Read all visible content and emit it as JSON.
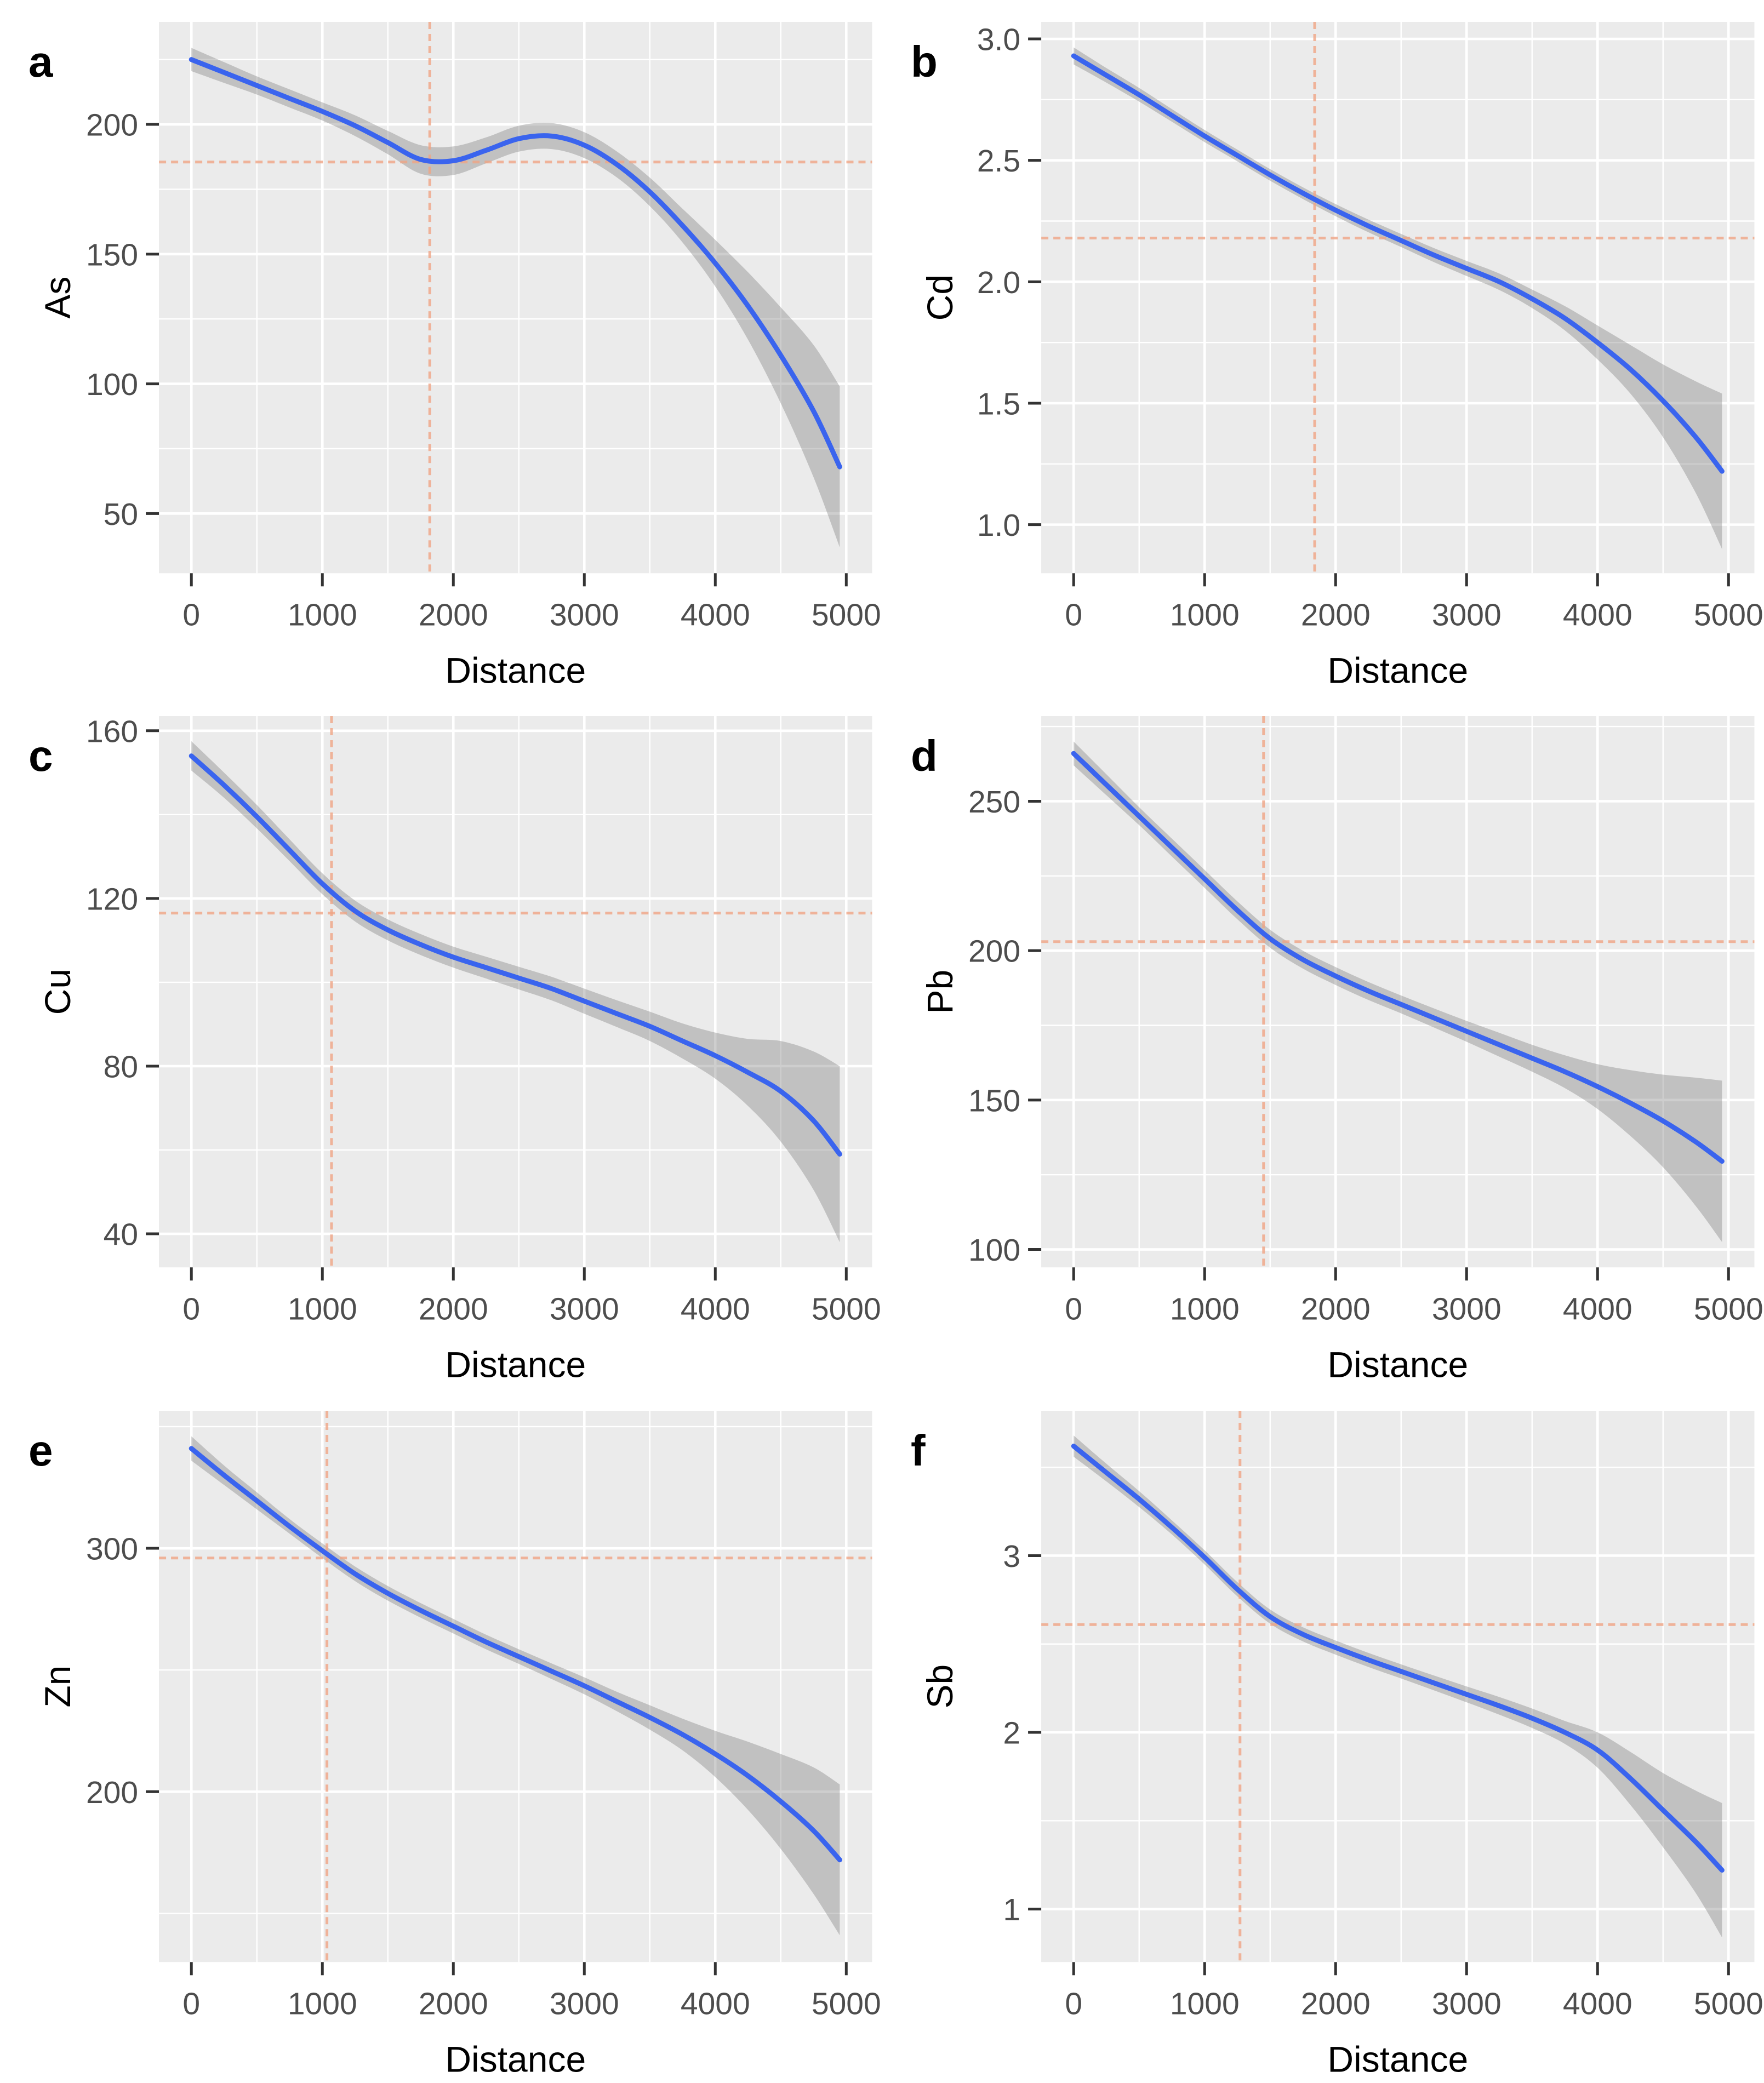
{
  "figure_title": "",
  "colors": {
    "panel_bg": "#EBEBEB",
    "grid": "#FFFFFF",
    "trend_line": "#3A64EE",
    "ribbon": "rgba(125,125,125,0.38)",
    "ref_line": "#F0A585",
    "tick_mark": "#333333",
    "tick_text": "#4D4D4D",
    "title_text": "#000000"
  },
  "chart_data": [
    {
      "type": "line",
      "letter": "a",
      "ylabel": "As",
      "xlabel": "Distance",
      "xlim": [
        -247.5,
        5197.5
      ],
      "xticks": [
        {
          "v": 0,
          "label": "0"
        },
        {
          "v": 1000,
          "label": "1000"
        },
        {
          "v": 2000,
          "label": "2000"
        },
        {
          "v": 3000,
          "label": "3000"
        },
        {
          "v": 4000,
          "label": "4000"
        },
        {
          "v": 5000,
          "label": "5000"
        }
      ],
      "xminor": [
        500,
        1500,
        2500,
        3500,
        4500
      ],
      "ylim": [
        27,
        239.5
      ],
      "yticks": [
        {
          "v": 50,
          "label": "50"
        },
        {
          "v": 100,
          "label": "100"
        },
        {
          "v": 150,
          "label": "150"
        },
        {
          "v": 200,
          "label": "200"
        }
      ],
      "yminor": [
        75,
        125,
        175,
        225
      ],
      "refline": {
        "x": 1820,
        "y": 185.5
      },
      "x": [
        0,
        250,
        500,
        750,
        1000,
        1250,
        1500,
        1750,
        2000,
        2250,
        2500,
        2750,
        3000,
        3250,
        3500,
        3750,
        4000,
        4250,
        4500,
        4750,
        4950
      ],
      "y": [
        225,
        220,
        215,
        210,
        205,
        199.5,
        193,
        186.5,
        186,
        190,
        194.5,
        195.5,
        192,
        184.5,
        174,
        161,
        146.5,
        130,
        111,
        89.5,
        68
      ],
      "lo": [
        220.5,
        216,
        211.5,
        206.5,
        201.5,
        195.5,
        188.5,
        181,
        180.5,
        185,
        189.5,
        190.5,
        187,
        179.5,
        168.5,
        154.5,
        137.5,
        117,
        92.5,
        64,
        37
      ],
      "hi": [
        229.5,
        224,
        218.5,
        213.5,
        208.5,
        203.5,
        197.5,
        192,
        191.5,
        195,
        199.5,
        200.5,
        197,
        189.5,
        179.5,
        167.5,
        155.5,
        143,
        129.5,
        115,
        99
      ]
    },
    {
      "type": "line",
      "letter": "b",
      "ylabel": "Cd",
      "xlabel": "Distance",
      "xlim": [
        -247.5,
        5197.5
      ],
      "xticks": [
        {
          "v": 0,
          "label": "0"
        },
        {
          "v": 1000,
          "label": "1000"
        },
        {
          "v": 2000,
          "label": "2000"
        },
        {
          "v": 3000,
          "label": "3000"
        },
        {
          "v": 4000,
          "label": "4000"
        },
        {
          "v": 5000,
          "label": "5000"
        }
      ],
      "xminor": [
        500,
        1500,
        2500,
        3500,
        4500
      ],
      "ylim": [
        0.8,
        3.07
      ],
      "yticks": [
        {
          "v": 1.0,
          "label": "1.0"
        },
        {
          "v": 1.5,
          "label": "1.5"
        },
        {
          "v": 2.0,
          "label": "2.0"
        },
        {
          "v": 2.5,
          "label": "2.5"
        },
        {
          "v": 3.0,
          "label": "3.0"
        }
      ],
      "yminor": [
        1.25,
        1.75,
        2.25,
        2.75
      ],
      "refline": {
        "x": 1840,
        "y": 2.18
      },
      "x": [
        0,
        250,
        500,
        750,
        1000,
        1250,
        1500,
        1750,
        2000,
        2250,
        2500,
        2750,
        3000,
        3250,
        3500,
        3750,
        4000,
        4250,
        4500,
        4750,
        4950
      ],
      "y": [
        2.93,
        2.85,
        2.77,
        2.685,
        2.6,
        2.52,
        2.44,
        2.365,
        2.295,
        2.23,
        2.17,
        2.11,
        2.055,
        2.0,
        1.93,
        1.85,
        1.75,
        1.64,
        1.51,
        1.36,
        1.22
      ],
      "lo": [
        2.895,
        2.82,
        2.742,
        2.659,
        2.575,
        2.496,
        2.416,
        2.341,
        2.27,
        2.204,
        2.143,
        2.081,
        2.024,
        1.966,
        1.892,
        1.8,
        1.68,
        1.54,
        1.36,
        1.13,
        0.9
      ],
      "hi": [
        2.965,
        2.88,
        2.798,
        2.711,
        2.625,
        2.544,
        2.464,
        2.389,
        2.32,
        2.256,
        2.197,
        2.139,
        2.086,
        2.034,
        1.968,
        1.9,
        1.82,
        1.74,
        1.66,
        1.59,
        1.54
      ]
    },
    {
      "type": "line",
      "letter": "c",
      "ylabel": "Cu",
      "xlabel": "Distance",
      "xlim": [
        -247.5,
        5197.5
      ],
      "xticks": [
        {
          "v": 0,
          "label": "0"
        },
        {
          "v": 1000,
          "label": "1000"
        },
        {
          "v": 2000,
          "label": "2000"
        },
        {
          "v": 3000,
          "label": "3000"
        },
        {
          "v": 4000,
          "label": "4000"
        },
        {
          "v": 5000,
          "label": "5000"
        }
      ],
      "xminor": [
        500,
        1500,
        2500,
        3500,
        4500
      ],
      "ylim": [
        32,
        163.5
      ],
      "yticks": [
        {
          "v": 40,
          "label": "40"
        },
        {
          "v": 80,
          "label": "80"
        },
        {
          "v": 120,
          "label": "120"
        },
        {
          "v": 160,
          "label": "160"
        }
      ],
      "yminor": [
        60,
        100,
        140
      ],
      "refline": {
        "x": 1070,
        "y": 116.5
      },
      "x": [
        0,
        250,
        500,
        750,
        1000,
        1250,
        1500,
        1750,
        2000,
        2250,
        2500,
        2750,
        3000,
        3250,
        3500,
        3750,
        4000,
        4250,
        4500,
        4750,
        4950
      ],
      "y": [
        154,
        147,
        139.5,
        131.5,
        123.5,
        117,
        112.5,
        109,
        106,
        103.5,
        101,
        98.5,
        95.5,
        92.5,
        89.5,
        86,
        82.5,
        78.5,
        74,
        67,
        59
      ],
      "lo": [
        150.5,
        144,
        136.7,
        128.9,
        121,
        114.5,
        110,
        106.5,
        103.5,
        100.9,
        98.3,
        95.7,
        92.5,
        89.3,
        86,
        81.8,
        77,
        70.5,
        62,
        50.5,
        38
      ],
      "hi": [
        157.5,
        150,
        142.3,
        134.1,
        126,
        119.5,
        115,
        111.5,
        108.5,
        106.1,
        103.7,
        101.3,
        98.5,
        95.7,
        93,
        90.2,
        88,
        86.5,
        86,
        83.5,
        80
      ]
    },
    {
      "type": "line",
      "letter": "d",
      "ylabel": "Pb",
      "xlabel": "Distance",
      "xlim": [
        -247.5,
        5197.5
      ],
      "xticks": [
        {
          "v": 0,
          "label": "0"
        },
        {
          "v": 1000,
          "label": "1000"
        },
        {
          "v": 2000,
          "label": "2000"
        },
        {
          "v": 3000,
          "label": "3000"
        },
        {
          "v": 4000,
          "label": "4000"
        },
        {
          "v": 5000,
          "label": "5000"
        }
      ],
      "xminor": [
        500,
        1500,
        2500,
        3500,
        4500
      ],
      "ylim": [
        94,
        278.5
      ],
      "yticks": [
        {
          "v": 100,
          "label": "100"
        },
        {
          "v": 150,
          "label": "150"
        },
        {
          "v": 200,
          "label": "200"
        },
        {
          "v": 250,
          "label": "250"
        }
      ],
      "yminor": [
        125,
        175,
        225,
        275
      ],
      "refline": {
        "x": 1450,
        "y": 203
      },
      "x": [
        0,
        250,
        500,
        750,
        1000,
        1250,
        1500,
        1750,
        2000,
        2250,
        2500,
        2750,
        3000,
        3250,
        3500,
        3750,
        4000,
        4250,
        4500,
        4750,
        4950
      ],
      "y": [
        266,
        255.5,
        245,
        234.5,
        224,
        213.5,
        204,
        197,
        191.5,
        186.5,
        182,
        177.5,
        173,
        168.5,
        164,
        159.5,
        154.5,
        149,
        143,
        136,
        129.5
      ],
      "lo": [
        262,
        252,
        242,
        231.5,
        221,
        210.5,
        201,
        194,
        188.5,
        183.5,
        179,
        174.3,
        169.5,
        164.5,
        159.5,
        154,
        147,
        138,
        127.5,
        114.5,
        102.5
      ],
      "hi": [
        270,
        259,
        248,
        237.5,
        227,
        216.5,
        207,
        200,
        194.5,
        189.5,
        185,
        180.7,
        176.5,
        172.5,
        168.5,
        165,
        162,
        160,
        158.5,
        157.5,
        156.5
      ]
    },
    {
      "type": "line",
      "letter": "e",
      "ylabel": "Zn",
      "xlabel": "Distance",
      "xlim": [
        -247.5,
        5197.5
      ],
      "xticks": [
        {
          "v": 0,
          "label": "0"
        },
        {
          "v": 1000,
          "label": "1000"
        },
        {
          "v": 2000,
          "label": "2000"
        },
        {
          "v": 3000,
          "label": "3000"
        },
        {
          "v": 4000,
          "label": "4000"
        },
        {
          "v": 5000,
          "label": "5000"
        }
      ],
      "xminor": [
        500,
        1500,
        2500,
        3500,
        4500
      ],
      "ylim": [
        130,
        356.5
      ],
      "yticks": [
        {
          "v": 200,
          "label": "200"
        },
        {
          "v": 300,
          "label": "300"
        }
      ],
      "yminor": [
        150,
        250,
        350
      ],
      "refline": {
        "x": 1035,
        "y": 296
      },
      "x": [
        0,
        250,
        500,
        750,
        1000,
        1250,
        1500,
        1750,
        2000,
        2250,
        2500,
        2750,
        3000,
        3250,
        3500,
        3750,
        4000,
        4250,
        4500,
        4750,
        4950
      ],
      "y": [
        341,
        330,
        319.5,
        309,
        299,
        289.5,
        281.5,
        274.5,
        268,
        261.5,
        255.5,
        249.5,
        243.5,
        237,
        230.5,
        223.5,
        215.5,
        206.5,
        196,
        184,
        172
      ],
      "lo": [
        336,
        326,
        316,
        306,
        296,
        286.5,
        278.5,
        271.5,
        265,
        258.5,
        252.5,
        246.3,
        240,
        233,
        225.5,
        217,
        206,
        192.5,
        176.5,
        158,
        141
      ],
      "hi": [
        346,
        334,
        323,
        312,
        302,
        292.5,
        284.5,
        277.5,
        271,
        264.5,
        258.5,
        252.7,
        247,
        241,
        235.5,
        230,
        225,
        220.5,
        215.5,
        210,
        203
      ]
    },
    {
      "type": "line",
      "letter": "f",
      "ylabel": "Sb",
      "xlabel": "Distance",
      "xlim": [
        -247.5,
        5197.5
      ],
      "xticks": [
        {
          "v": 0,
          "label": "0"
        },
        {
          "v": 1000,
          "label": "1000"
        },
        {
          "v": 2000,
          "label": "2000"
        },
        {
          "v": 3000,
          "label": "3000"
        },
        {
          "v": 4000,
          "label": "4000"
        },
        {
          "v": 5000,
          "label": "5000"
        }
      ],
      "xminor": [
        500,
        1500,
        2500,
        3500,
        4500
      ],
      "ylim": [
        0.7,
        3.82
      ],
      "yticks": [
        {
          "v": 1,
          "label": "1"
        },
        {
          "v": 2,
          "label": "2"
        },
        {
          "v": 3,
          "label": "3"
        }
      ],
      "yminor": [
        1.5,
        2.5,
        3.5
      ],
      "refline": {
        "x": 1270,
        "y": 2.61
      },
      "x": [
        0,
        250,
        500,
        750,
        1000,
        1250,
        1500,
        1750,
        2000,
        2250,
        2500,
        2750,
        3000,
        3250,
        3500,
        3750,
        4000,
        4250,
        4500,
        4750,
        4950
      ],
      "y": [
        3.62,
        3.47,
        3.32,
        3.16,
        2.99,
        2.81,
        2.655,
        2.555,
        2.48,
        2.41,
        2.345,
        2.28,
        2.215,
        2.15,
        2.08,
        2.0,
        1.9,
        1.74,
        1.56,
        1.38,
        1.22
      ],
      "lo": [
        3.56,
        3.42,
        3.275,
        3.12,
        2.95,
        2.77,
        2.615,
        2.515,
        2.44,
        2.37,
        2.305,
        2.238,
        2.17,
        2.1,
        2.025,
        1.935,
        1.8,
        1.59,
        1.35,
        1.09,
        0.84
      ],
      "hi": [
        3.68,
        3.52,
        3.365,
        3.2,
        3.03,
        2.85,
        2.695,
        2.595,
        2.52,
        2.45,
        2.385,
        2.322,
        2.26,
        2.2,
        2.135,
        2.065,
        2.0,
        1.89,
        1.77,
        1.67,
        1.6
      ]
    }
  ]
}
